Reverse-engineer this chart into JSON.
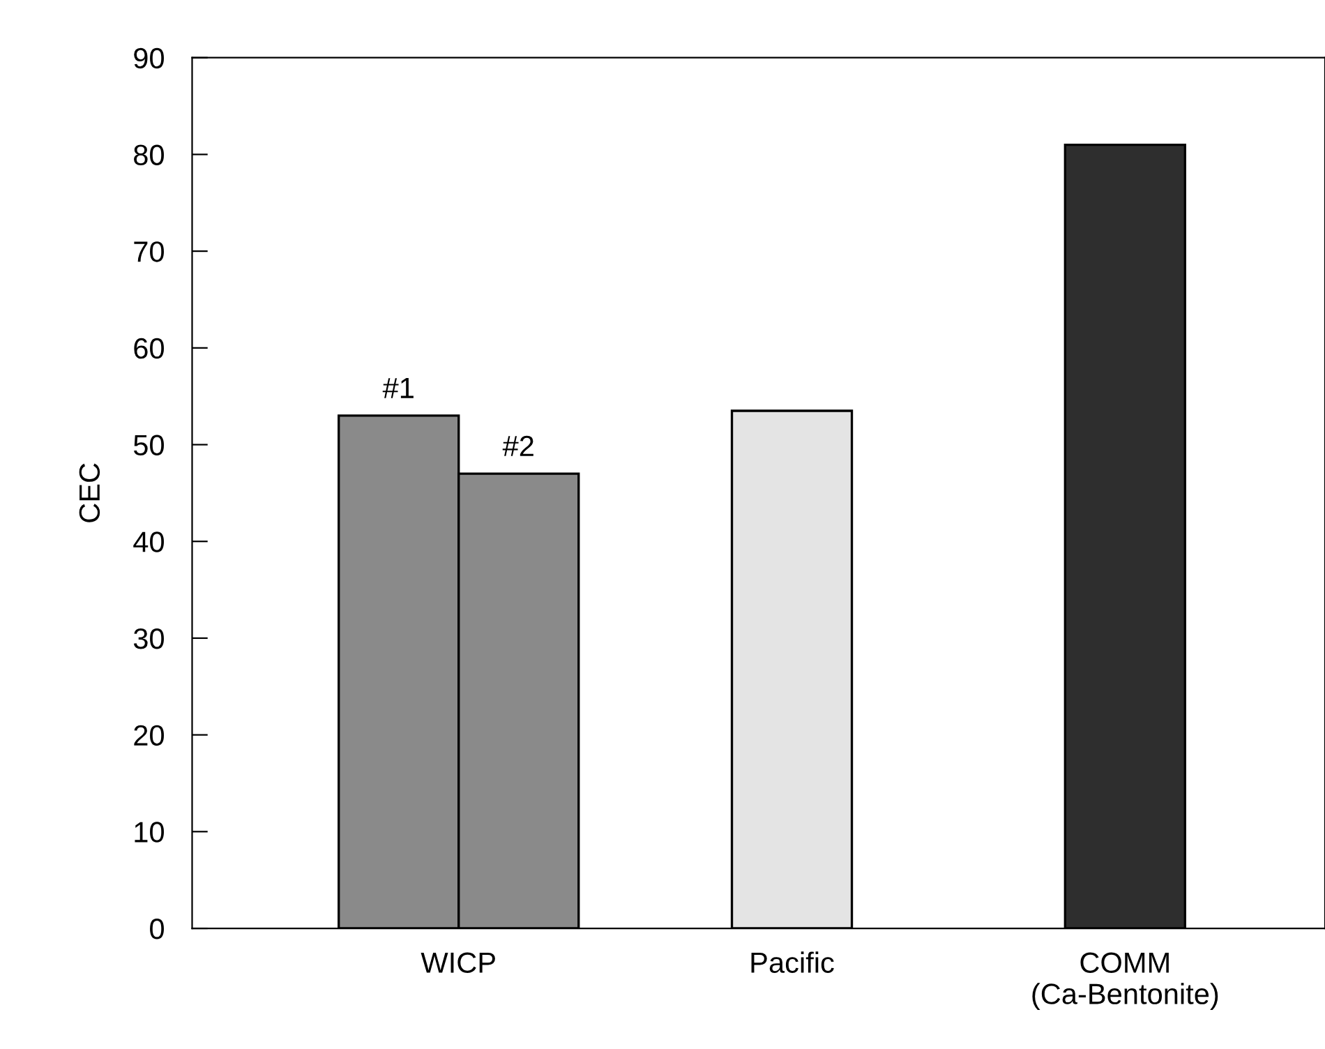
{
  "chart_data": {
    "type": "bar",
    "ylabel": "CEC",
    "categories": [
      "WICP",
      "Pacific",
      "COMM\n(Ca-Bentonite)"
    ],
    "series": [
      {
        "name": "#1",
        "colors": [
          "#8a8a8a",
          "#e4e4e4",
          "#2e2e2e"
        ],
        "values": [
          53,
          53.5,
          81
        ]
      },
      {
        "name": "#2",
        "colors": [
          "#8a8a8a",
          null,
          null
        ],
        "values": [
          47,
          null,
          null
        ]
      }
    ],
    "ylim": [
      0,
      90
    ],
    "yticks": [
      0,
      10,
      20,
      30,
      40,
      50,
      60,
      70,
      80,
      90
    ],
    "grid": false,
    "legend": false
  }
}
